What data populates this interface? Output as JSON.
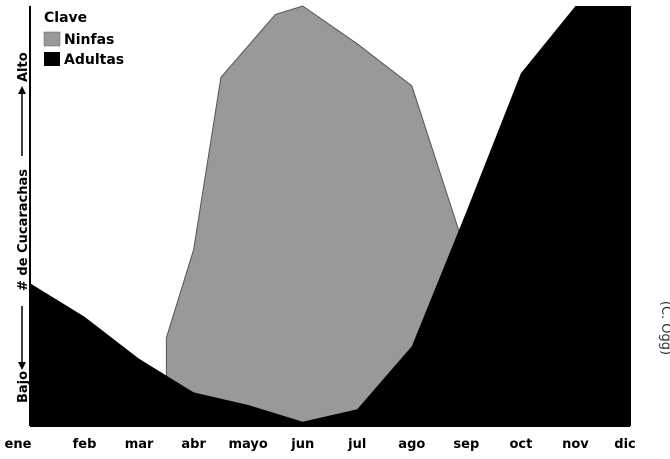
{
  "chart_data": {
    "type": "area",
    "title": "",
    "categories": [
      "ene",
      "feb",
      "mar",
      "abr",
      "mayo",
      "jun",
      "jul",
      "ago",
      "sep",
      "oct",
      "nov",
      "dic"
    ],
    "ylim": [
      0,
      100
    ],
    "series": [
      {
        "name": "Ninfas",
        "color": "#999999",
        "points": [
          {
            "x": 2.5,
            "y": 21
          },
          {
            "x": 3.0,
            "y": 42
          },
          {
            "x": 3.5,
            "y": 83
          },
          {
            "x": 4.5,
            "y": 98
          },
          {
            "x": 5.0,
            "y": 100
          },
          {
            "x": 6.0,
            "y": 91
          },
          {
            "x": 7.0,
            "y": 81
          },
          {
            "x": 7.9,
            "y": 45
          }
        ]
      },
      {
        "name": "Adultas",
        "color": "#000000",
        "points": [
          {
            "x": 0,
            "y": 34
          },
          {
            "x": 1,
            "y": 26
          },
          {
            "x": 2,
            "y": 16
          },
          {
            "x": 3,
            "y": 8
          },
          {
            "x": 4,
            "y": 5
          },
          {
            "x": 5,
            "y": 1
          },
          {
            "x": 6,
            "y": 4
          },
          {
            "x": 7,
            "y": 19
          },
          {
            "x": 8,
            "y": 51
          },
          {
            "x": 9,
            "y": 84
          },
          {
            "x": 10,
            "y": 100
          },
          {
            "x": 11,
            "y": 100
          }
        ]
      }
    ],
    "legend": {
      "title": "Clave",
      "position": "top-left",
      "items": [
        "Ninfas",
        "Adultas"
      ]
    },
    "ylabel": {
      "low": "Bajo",
      "middle": "# de Cucarachas",
      "high": "Alto"
    },
    "grid": false
  },
  "credit": "(C. Ogg)"
}
